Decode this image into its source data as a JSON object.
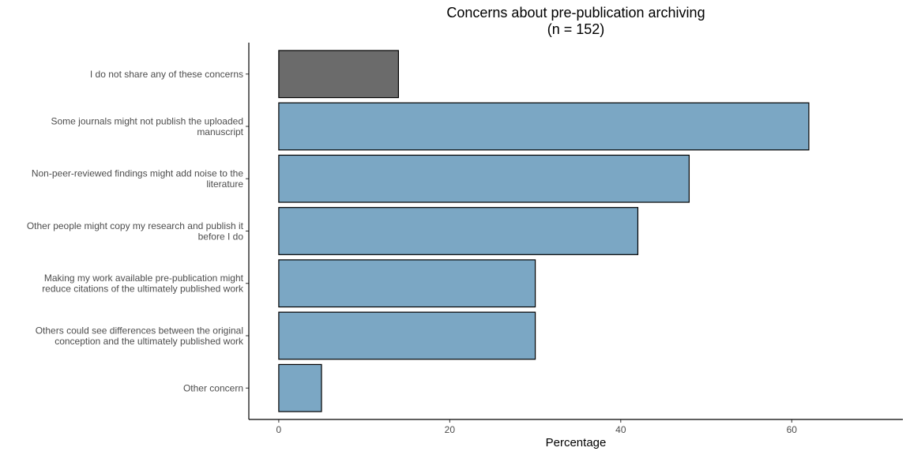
{
  "chart_data": {
    "type": "bar",
    "orientation": "horizontal",
    "title": "Concerns about pre-publication archiving",
    "subtitle": "(n = 152)",
    "xlabel": "Percentage",
    "ylabel": "",
    "xlim": [
      -3.5,
      73
    ],
    "xticks": [
      0,
      20,
      40,
      60
    ],
    "grid": false,
    "legend": "none",
    "categories": [
      "I do not share any of these concerns",
      "Some journals might not publish the uploaded manuscript",
      "Non-peer-reviewed findings might add noise to the literature",
      "Other people might copy my research and publish it before I do",
      "Making my work available pre-publication might reduce citations of the ultimately published work",
      "Others could see differences between the original conception and the ultimately published work",
      "Other concern"
    ],
    "category_lines": [
      [
        "I do not share any of these concerns"
      ],
      [
        "Some journals might not publish the uploaded",
        "manuscript"
      ],
      [
        "Non-peer-reviewed findings might add noise to the",
        "literature"
      ],
      [
        "Other people might copy my research and publish it",
        "before I do"
      ],
      [
        "Making my work available pre-publication might",
        "reduce citations of the ultimately published work"
      ],
      [
        "Others could see differences between the original",
        "conception and the ultimately published work"
      ],
      [
        "Other concern"
      ]
    ],
    "values": [
      14,
      62,
      48,
      42,
      30,
      30,
      5
    ],
    "bar_colors": [
      "#6b6b6b",
      "#7ba7c4",
      "#7ba7c4",
      "#7ba7c4",
      "#7ba7c4",
      "#7ba7c4",
      "#7ba7c4"
    ],
    "bar_outline_color": "#000000"
  }
}
